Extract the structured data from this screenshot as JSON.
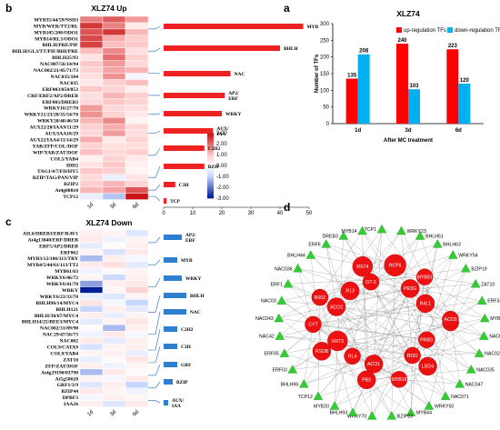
{
  "panel_labels": {
    "a": "a",
    "b": "b",
    "c": "c",
    "d": "d"
  },
  "chart_data": [
    {
      "id": "a",
      "type": "bar",
      "title": "XLZ74",
      "xlabel": "After MC treatment",
      "ylabel": "Number of TFs",
      "categories": [
        "1d",
        "3d",
        "6d"
      ],
      "ylim": [
        0,
        300
      ],
      "yticks": [
        0,
        50,
        100,
        150,
        200,
        250,
        300
      ],
      "legend_position": "top-right",
      "series": [
        {
          "name": "up-regulation TFs",
          "color": "#ff0000",
          "values": [
            135,
            240,
            223
          ]
        },
        {
          "name": "down-regulation TFs",
          "color": "#00b0f0",
          "values": [
            208,
            103,
            120
          ]
        }
      ]
    },
    {
      "id": "b",
      "type": "heatmap",
      "title": "XLZ74 Up",
      "columns": [
        "1d",
        "3d",
        "6d"
      ],
      "color_scale": {
        "min": -3.0,
        "max": 3.0,
        "ticks": [
          "3.00",
          "2.00",
          "1.00",
          "0.00",
          "-1.00",
          "-2.00",
          "-3.00"
        ]
      },
      "rows": [
        "MYB35/44/59/NSD3",
        "MYB/WER/TT2/RL",
        "MYB105/208/ODO1",
        "MYB14/RL3/ODO1",
        "BHLH/PRE/PIF",
        "BHLH/GL3/TT/PIF/BHI/PRE",
        "BHLH25/93",
        "NAC007/56/14/94",
        "NAC002/21/45/71/73",
        "NAC035/104",
        "NAC035",
        "ERF003/054/053",
        "CRF/ERF2/AP2/DREB",
        "ERF003/DREB3",
        "WRKY16/27/70",
        "WRKY21/23/28/35/54/70",
        "WRKY28/40/46/50",
        "AUX22/28/IAA9/11/29",
        "AUX/IAA18/29",
        "AUX22/IAA4/11/14/29",
        "YAB/ZFP/COL/DOF",
        "WIP/YAB/ZAT/DOF",
        "COL5/YAB4",
        "IDD2",
        "TAG1/4/7/FD/HY5",
        "BZIP/TAG/PAN/VIP",
        "BZIP2",
        "At4g00810",
        "TCP12"
      ],
      "values": [
        [
          1.8,
          2.2,
          1.5
        ],
        [
          2.6,
          1.8,
          0.4
        ],
        [
          2.3,
          2.6,
          1.2
        ],
        [
          2.4,
          1.3,
          0.9
        ],
        [
          2.5,
          1.1,
          1.0
        ],
        [
          1.1,
          1.7,
          0.6
        ],
        [
          0.5,
          2.0,
          0.9
        ],
        [
          1.0,
          1.5,
          0.7
        ],
        [
          0.8,
          1.4,
          1.2
        ],
        [
          0.6,
          1.6,
          -0.2
        ],
        [
          0.4,
          0.9,
          1.1
        ],
        [
          1.0,
          0.8,
          0.3
        ],
        [
          0.6,
          1.2,
          0.9
        ],
        [
          0.7,
          1.0,
          0.8
        ],
        [
          1.5,
          0.7,
          0.6
        ],
        [
          1.6,
          0.8,
          0.4
        ],
        [
          1.2,
          1.7,
          0.2
        ],
        [
          0.9,
          1.3,
          0.7
        ],
        [
          0.7,
          1.5,
          0.6
        ],
        [
          1.3,
          0.4,
          0.8
        ],
        [
          0.8,
          0.6,
          0.6
        ],
        [
          1.1,
          0.7,
          0.9
        ],
        [
          0.3,
          0.8,
          0.4
        ],
        [
          0.5,
          1.0,
          0.3
        ],
        [
          1.0,
          0.9,
          0.2
        ],
        [
          0.7,
          -0.4,
          0.5
        ],
        [
          0.9,
          1.2,
          0.8
        ],
        [
          1.2,
          1.4,
          2.3
        ],
        [
          -0.4,
          -1.2,
          3.0
        ]
      ]
    },
    {
      "id": "b-bars",
      "type": "bar",
      "orientation": "horizontal",
      "xlim": [
        0,
        50
      ],
      "xticks": [
        0,
        10,
        20,
        30,
        40,
        50
      ],
      "color": "#ee2222",
      "categories": [
        "MYB",
        "BHLH",
        "NAC",
        "AP2/ERF",
        "WRKY",
        "AUX/IAA",
        "C2H2",
        "BZIP",
        "C3H",
        "TCP"
      ],
      "values": [
        48,
        40,
        23,
        21,
        20,
        17,
        14,
        14,
        4,
        1
      ]
    },
    {
      "id": "c",
      "type": "heatmap",
      "title": "XLZ74 Down",
      "columns": [
        "1d",
        "3d",
        "6d"
      ],
      "rows": [
        "AIL6/DREB3/ERF/RAV1",
        "At4g13040/ERF/DREB",
        "ERF5/AP2/DREB",
        "ERF062",
        "MYB3/12/106/113/TRY",
        "MYB4/5/44/61/113/TT2",
        "MYB61/63",
        "WRKY6/46/72",
        "WRKY6/41/70",
        "WRKY",
        "WRKY6/23/33/70",
        "BHLH96/14/MYC4",
        "BHLH121",
        "BHLH/30/67/MYC4",
        "BHLH14/25/BEE3/MYC4",
        "NAC002/31/89/90",
        "NAC29/47/56/73",
        "NAC002",
        "COL9/CATA9",
        "COL9/YAB4",
        "ZAT10",
        "ZFP/ZAT/DOF",
        "At4g29190/03790",
        "At5g58620",
        "GRF1/3/9",
        "BZIP44",
        "DPBF3",
        "IAA26"
      ],
      "values": [
        [
          0.3,
          0.2,
          -0.6
        ],
        [
          0.4,
          -0.3,
          0.2
        ],
        [
          -0.5,
          0.1,
          0.3
        ],
        [
          0.2,
          -0.7,
          0.4
        ],
        [
          -1.3,
          0.3,
          -0.2
        ],
        [
          0.4,
          0.6,
          -0.5
        ],
        [
          -0.3,
          0.1,
          0.2
        ],
        [
          0.2,
          -0.9,
          0.3
        ],
        [
          -1.6,
          0.3,
          0.4
        ],
        [
          -3.0,
          0.2,
          0.8
        ],
        [
          -0.4,
          -0.6,
          0.2
        ],
        [
          0.5,
          -0.2,
          -1.0
        ],
        [
          -1.0,
          0.3,
          -0.5
        ],
        [
          0.3,
          -0.4,
          0.2
        ],
        [
          -0.5,
          0.2,
          0.5
        ],
        [
          0.1,
          -1.3,
          0.3
        ],
        [
          -0.3,
          0.4,
          -0.2
        ],
        [
          0.4,
          -0.5,
          0.3
        ],
        [
          -0.7,
          0.2,
          0.3
        ],
        [
          0.2,
          0.3,
          -0.4
        ],
        [
          -0.4,
          0.1,
          0.5
        ],
        [
          0.3,
          -0.3,
          0.2
        ],
        [
          -1.3,
          0.4,
          0.1
        ],
        [
          0.2,
          -0.2,
          0.4
        ],
        [
          -0.6,
          0.3,
          -1.0
        ],
        [
          0.4,
          0.2,
          -0.3
        ],
        [
          -0.2,
          0.3,
          0.2
        ],
        [
          0.3,
          -0.6,
          0.4
        ]
      ]
    },
    {
      "id": "c-bars",
      "type": "bar",
      "orientation": "horizontal",
      "color": "#2f7fd0",
      "categories": [
        "AP2/ERF",
        "MYB",
        "WRKY",
        "BHLH",
        "NAC",
        "C2H2",
        "C3H",
        "GRF",
        "BZIP",
        "AUX/IAA"
      ],
      "values": [
        4,
        3,
        4,
        5,
        5,
        3,
        3,
        3,
        2,
        1
      ]
    }
  ],
  "network": {
    "hubs": [
      "OBP4",
      "PR8G",
      "LBD4",
      "ROO",
      "MYB18",
      "ACO1",
      "PB3",
      "RL4",
      "RSDB",
      "HRT3",
      "CYT",
      "ACO2",
      "R002",
      "R13",
      "RS74",
      "GT-2",
      "RCF6",
      "PR3G",
      "MYB81",
      "R4L1",
      "ACO3"
    ],
    "tfs": [
      "TCP1",
      "WRKY23",
      "BHLH51",
      "BHLH63",
      "WRKY54",
      "BZIP19",
      "ZAT10",
      "ERF34",
      "MYB53",
      "NAC002",
      "NAC021",
      "NAC035",
      "NAC047",
      "NAC071",
      "WRKY50",
      "MYB44",
      "BZIP23",
      "WRKY70",
      "BHLH93",
      "MYB20",
      "TCP12",
      "BHLH96",
      "ERF03",
      "ERF05",
      "NAC42",
      "NAC043",
      "NAC03",
      "ERF1",
      "NAC036",
      "BHLH44",
      "ERF6",
      "DREB3",
      "MYB14"
    ]
  }
}
